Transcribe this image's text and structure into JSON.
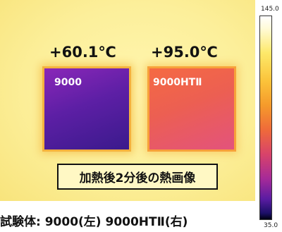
{
  "image": {
    "temp_left": "+60.1℃",
    "temp_right": "+95.0℃",
    "specimen_left_label": "9000",
    "specimen_right_label": "9000HTⅡ",
    "caption": "加熱後2分後の熱画像",
    "footer": "試験体: 9000(左) 9000HTⅡ(右)"
  },
  "scale": {
    "max": "145.0",
    "min": "35.0"
  }
}
